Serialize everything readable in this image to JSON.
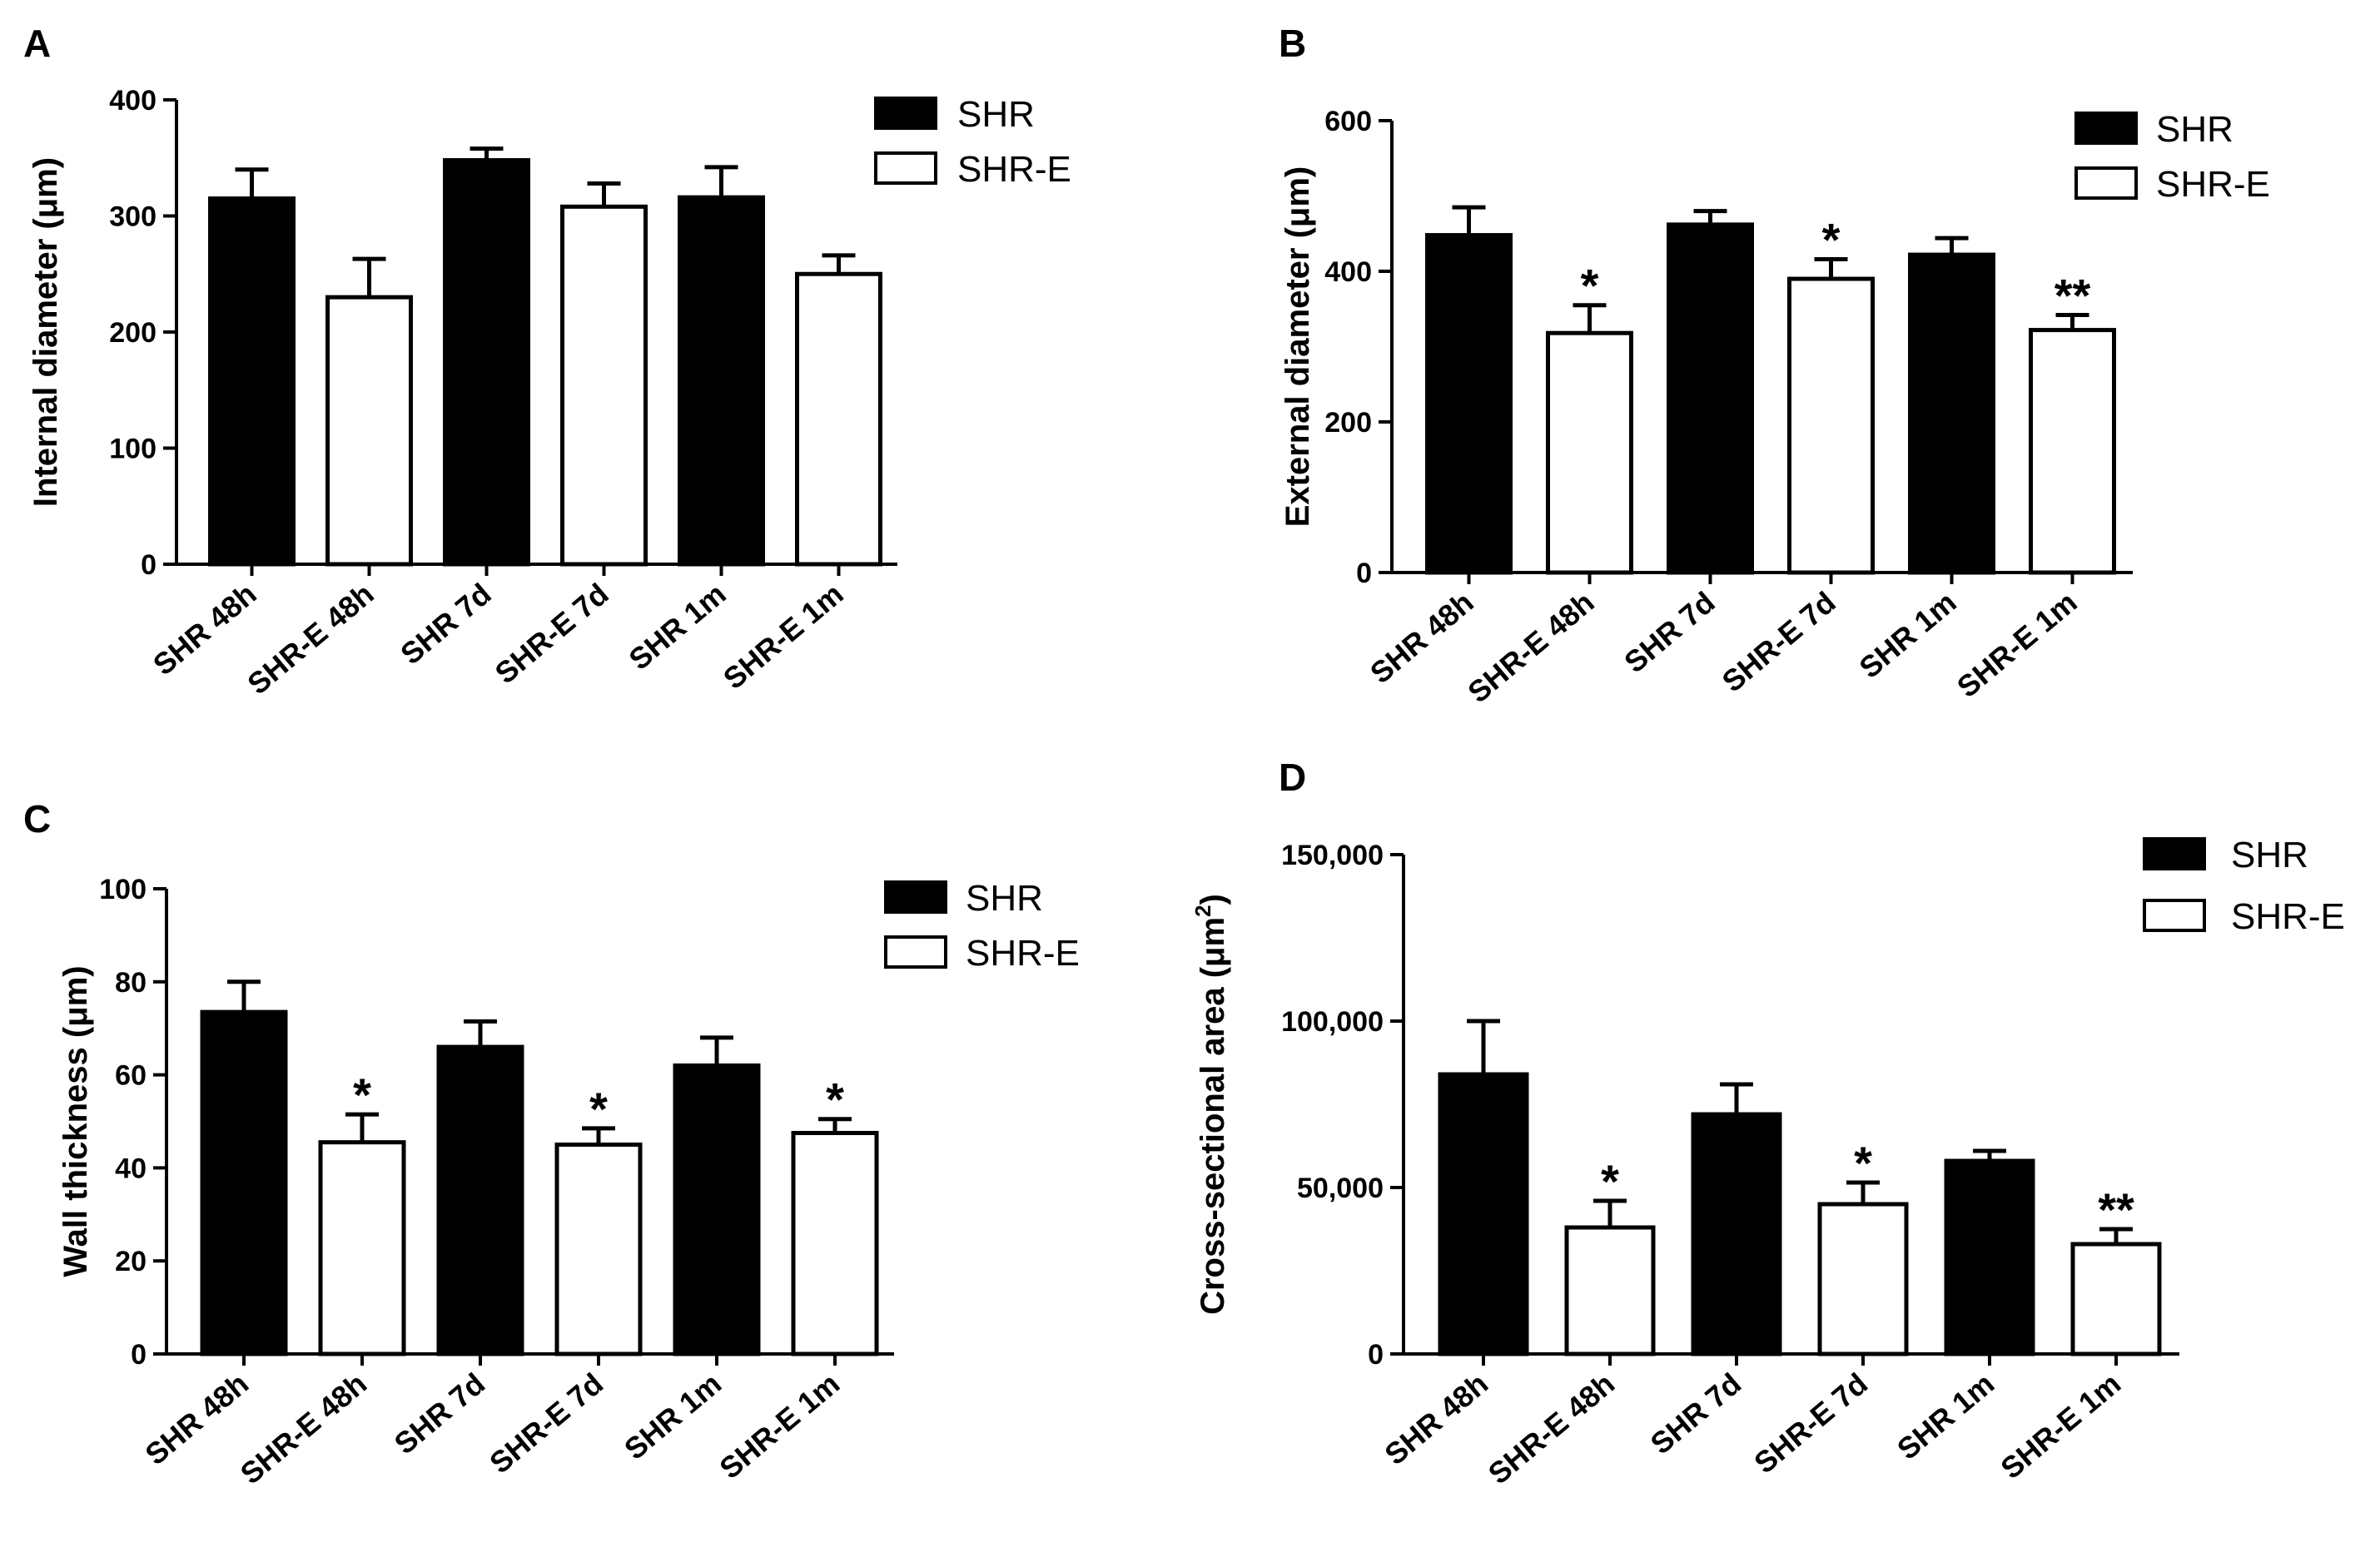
{
  "chart_data": [
    {
      "panel": "A",
      "type": "bar",
      "categories": [
        "SHR 48h",
        "SHR-E 48h",
        "SHR 7d",
        "SHR-E 7d",
        "SHR 1m",
        "SHR-E 1m"
      ],
      "values": [
        315,
        230,
        348,
        308,
        316,
        250
      ],
      "errors": [
        25,
        33,
        10,
        20,
        26,
        16
      ],
      "significance": [
        "",
        "",
        "",
        "",
        "",
        ""
      ],
      "groups": [
        "SHR",
        "SHR-E",
        "SHR",
        "SHR-E",
        "SHR",
        "SHR-E"
      ],
      "ylabel": "Internal diameter (μm)",
      "ylim": [
        0,
        400
      ],
      "yticks": [
        0,
        100,
        200,
        300,
        400
      ],
      "ytick_labels": [
        "0",
        "100",
        "200",
        "300",
        "400"
      ],
      "legend": [
        "SHR",
        "SHR-E"
      ]
    },
    {
      "panel": "B",
      "type": "bar",
      "categories": [
        "SHR 48h",
        "SHR-E 48h",
        "SHR 7d",
        "SHR-E 7d",
        "SHR 1m",
        "SHR-E 1m"
      ],
      "values": [
        448,
        318,
        462,
        390,
        422,
        322
      ],
      "errors": [
        37,
        37,
        18,
        26,
        22,
        20
      ],
      "significance": [
        "",
        "*",
        "",
        "*",
        "",
        "**"
      ],
      "groups": [
        "SHR",
        "SHR-E",
        "SHR",
        "SHR-E",
        "SHR",
        "SHR-E"
      ],
      "ylabel": "External diameter (μm)",
      "ylim": [
        0,
        600
      ],
      "yticks": [
        0,
        200,
        400,
        600
      ],
      "ytick_labels": [
        "0",
        "200",
        "400",
        "600"
      ],
      "legend": [
        "SHR",
        "SHR-E"
      ]
    },
    {
      "panel": "C",
      "type": "bar",
      "categories": [
        "SHR 48h",
        "SHR-E 48h",
        "SHR 7d",
        "SHR-E 7d",
        "SHR 1m",
        "SHR-E 1m"
      ],
      "values": [
        73.5,
        45.5,
        66,
        45,
        62,
        47.5
      ],
      "errors": [
        6.5,
        6,
        5.5,
        3.5,
        6,
        3
      ],
      "significance": [
        "",
        "*",
        "",
        "*",
        "",
        "*"
      ],
      "groups": [
        "SHR",
        "SHR-E",
        "SHR",
        "SHR-E",
        "SHR",
        "SHR-E"
      ],
      "ylabel": "Wall thickness (μm)",
      "ylim": [
        0,
        100
      ],
      "yticks": [
        0,
        20,
        40,
        60,
        80,
        100
      ],
      "ytick_labels": [
        "0",
        "20",
        "40",
        "60",
        "80",
        "100"
      ],
      "legend": [
        "SHR",
        "SHR-E"
      ]
    },
    {
      "panel": "D",
      "type": "bar",
      "categories": [
        "SHR 48h",
        "SHR-E 48h",
        "SHR 7d",
        "SHR-E 7d",
        "SHR 1m",
        "SHR-E 1m"
      ],
      "values": [
        84000,
        38000,
        72000,
        45000,
        58000,
        33000
      ],
      "errors": [
        16000,
        8000,
        9000,
        6500,
        3000,
        4500
      ],
      "significance": [
        "",
        "*",
        "",
        "*",
        "",
        "**"
      ],
      "groups": [
        "SHR",
        "SHR-E",
        "SHR",
        "SHR-E",
        "SHR",
        "SHR-E"
      ],
      "ylabel": "Cross-sectional area (μm²)",
      "ylabel_main": "Cross-sectional area (μm",
      "ylabel_sup": "2",
      "ylabel_close": ")",
      "ylim": [
        0,
        150000
      ],
      "yticks": [
        0,
        50000,
        100000,
        150000
      ],
      "ytick_labels": [
        "0",
        "50,000",
        "100,000",
        "150,000"
      ],
      "legend": [
        "SHR",
        "SHR-E"
      ]
    }
  ],
  "colors": {
    "SHR": "#000000",
    "SHR-E": "#ffffff",
    "axis": "#000000"
  }
}
